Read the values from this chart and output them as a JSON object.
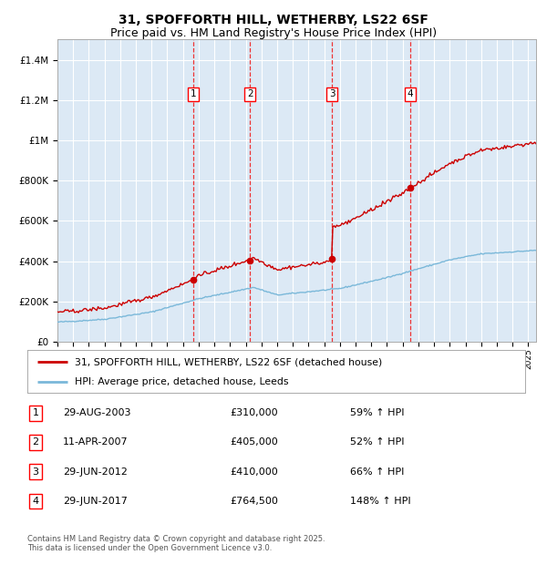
{
  "title_line1": "31, SPOFFORTH HILL, WETHERBY, LS22 6SF",
  "title_line2": "Price paid vs. HM Land Registry's House Price Index (HPI)",
  "red_label": "31, SPOFFORTH HILL, WETHERBY, LS22 6SF (detached house)",
  "blue_label": "HPI: Average price, detached house, Leeds",
  "footer": "Contains HM Land Registry data © Crown copyright and database right 2025.\nThis data is licensed under the Open Government Licence v3.0.",
  "sales": [
    {
      "num": 1,
      "date": "29-AUG-2003",
      "year": 2003.66,
      "price": 310000,
      "pct": "59% ↑ HPI"
    },
    {
      "num": 2,
      "date": "11-APR-2007",
      "year": 2007.27,
      "price": 405000,
      "pct": "52% ↑ HPI"
    },
    {
      "num": 3,
      "date": "29-JUN-2012",
      "year": 2012.49,
      "price": 410000,
      "pct": "66% ↑ HPI"
    },
    {
      "num": 4,
      "date": "29-JUN-2017",
      "year": 2017.49,
      "price": 764500,
      "pct": "148% ↑ HPI"
    }
  ],
  "ylim": [
    0,
    1500000
  ],
  "xlim_start": 1995.0,
  "xlim_end": 2025.5,
  "background_color": "#ffffff",
  "plot_bg_color": "#dce9f5",
  "grid_color": "#ffffff",
  "red_color": "#cc0000",
  "blue_color": "#7ab8d9",
  "vline_color": "#ee3333",
  "title_fontsize": 10,
  "subtitle_fontsize": 9
}
